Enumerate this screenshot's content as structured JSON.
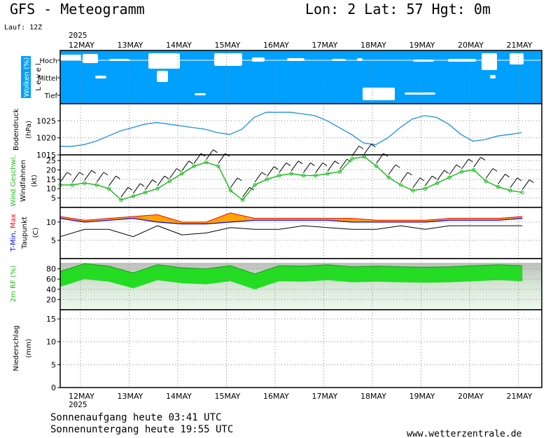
{
  "header": {
    "title": "GFS - Meteogramm",
    "location": "Lon: 2 Lat: 57 Hgt: 0m",
    "run": "Lauf: 12Z"
  },
  "time_axis": {
    "year": "2025",
    "days": [
      "12MAY",
      "13MAY",
      "14MAY",
      "15MAY",
      "16MAY",
      "17MAY",
      "18MAY",
      "19MAY",
      "20MAY",
      "21MAY"
    ]
  },
  "footer": {
    "sunrise": "Sonnenaufgang heute 03:41 UTC",
    "sunset": "Sonnenuntergang heute 19:55 UTC",
    "website": "www.wetterzentrale.de"
  },
  "colors": {
    "cloud_bg": "#00a0ff",
    "pressure": "#1e90e0",
    "wind_speed": "#22bb22",
    "temperature": "#ff0000",
    "tmin": "#0000ff",
    "tmax_fill": "#ffa500",
    "dewpoint": "#000000",
    "humidity": "#22dd22"
  },
  "chart_data": [
    {
      "type": "area",
      "panel": "clouds",
      "ylabel": "Wolken (%)",
      "ylabel2": "L e v e l",
      "levels": [
        "Hoch",
        "Mittel",
        "Tief"
      ],
      "note": "cloud cover shown as blue fill, white gaps = clear sky"
    },
    {
      "type": "line",
      "panel": "pressure",
      "ylabel": "Bodendruck",
      "unit": "(hPa)",
      "yticks": [
        1015,
        1020,
        1025
      ],
      "ylim": [
        1015,
        1030
      ],
      "x_days": [
        0,
        0.25,
        0.5,
        0.75,
        1,
        1.25,
        1.5,
        1.75,
        2,
        2.25,
        2.5,
        2.75,
        3,
        3.25,
        3.5,
        3.75,
        4,
        4.25,
        4.5,
        4.75,
        5,
        5.25,
        5.5,
        5.75,
        6,
        6.25,
        6.5,
        6.75,
        7,
        7.25,
        7.5,
        7.75,
        8,
        8.25,
        8.5,
        8.75,
        9,
        9.25,
        9.5
      ],
      "values": [
        1017.5,
        1017.5,
        1018,
        1019,
        1020.5,
        1022,
        1023,
        1024,
        1024.5,
        1024,
        1023.5,
        1023,
        1022.5,
        1021.5,
        1021,
        1022.5,
        1026,
        1027.5,
        1027.5,
        1027.5,
        1027,
        1026.5,
        1025,
        1023,
        1021,
        1018.5,
        1018,
        1020,
        1023,
        1025.5,
        1026.5,
        1026,
        1024,
        1021,
        1019,
        1019.5,
        1020.5,
        1021,
        1021.5
      ]
    },
    {
      "type": "line",
      "panel": "wind",
      "ylabel": "Wind Geschwi.",
      "ylabel2": "Windfahnen",
      "unit": "(kt)",
      "yticks": [
        5,
        10,
        15,
        20,
        25
      ],
      "ylim": [
        0,
        28
      ],
      "x_days": [
        0,
        0.25,
        0.5,
        0.75,
        1,
        1.25,
        1.5,
        1.75,
        2,
        2.25,
        2.5,
        2.75,
        3,
        3.25,
        3.5,
        3.75,
        4,
        4.25,
        4.5,
        4.75,
        5,
        5.25,
        5.5,
        5.75,
        6,
        6.25,
        6.5,
        6.75,
        7,
        7.25,
        7.5,
        7.75,
        8,
        8.25,
        8.5,
        8.75,
        9,
        9.25,
        9.5
      ],
      "values": [
        12,
        12,
        13,
        12,
        10,
        4,
        6,
        8,
        10,
        14,
        18,
        22,
        24,
        22,
        9,
        4,
        12,
        15,
        17,
        18,
        17,
        17,
        18,
        19,
        26,
        27,
        22,
        16,
        12,
        9,
        10,
        13,
        16,
        19,
        20,
        14,
        11,
        9,
        8
      ]
    },
    {
      "type": "line",
      "panel": "temperature",
      "ylabel": "T-Min, Max",
      "ylabel2": "Taupunkt",
      "unit": "(C)",
      "yticks": [
        5,
        10
      ],
      "ylim": [
        0,
        14
      ],
      "x_days": [
        0,
        0.5,
        1,
        1.5,
        2,
        2.5,
        3,
        3.5,
        4,
        4.5,
        5,
        5.5,
        6,
        6.5,
        7,
        7.5,
        8,
        8.5,
        9,
        9.5
      ],
      "tmin": [
        11,
        10,
        10.5,
        11,
        10,
        9.5,
        9.5,
        10,
        10.5,
        10.5,
        10.5,
        10.5,
        10,
        10,
        10,
        10,
        10.5,
        10.5,
        10.5,
        11
      ],
      "tmax": [
        11.5,
        10.5,
        11,
        11.5,
        12,
        10,
        10,
        12.5,
        11,
        11,
        11,
        11,
        11,
        10.5,
        10.5,
        10.5,
        11,
        11,
        11,
        11.5
      ],
      "dewpoint": [
        6,
        8,
        8,
        6,
        9,
        6.5,
        7,
        8.5,
        8,
        8,
        9,
        8.5,
        8,
        8,
        9,
        8,
        9,
        9,
        9,
        9
      ]
    },
    {
      "type": "area",
      "panel": "humidity",
      "ylabel": "2m RF (%)",
      "yticks": [
        20,
        40,
        60,
        80
      ],
      "ylim": [
        0,
        100
      ],
      "x_days": [
        0,
        0.5,
        1,
        1.5,
        2,
        2.5,
        3,
        3.5,
        4,
        4.5,
        5,
        5.5,
        6,
        6.5,
        7,
        7.5,
        8,
        8.5,
        9,
        9.5
      ],
      "values": [
        75,
        90,
        85,
        72,
        88,
        82,
        80,
        86,
        70,
        86,
        85,
        88,
        84,
        85,
        84,
        83,
        84,
        86,
        88,
        86
      ]
    },
    {
      "type": "bar",
      "panel": "precipitation",
      "ylabel": "Niederschlag",
      "unit": "(mm)",
      "yticks": [
        0,
        5,
        10,
        15
      ],
      "ylim": [
        0,
        17
      ],
      "values": [
        0
      ]
    }
  ]
}
